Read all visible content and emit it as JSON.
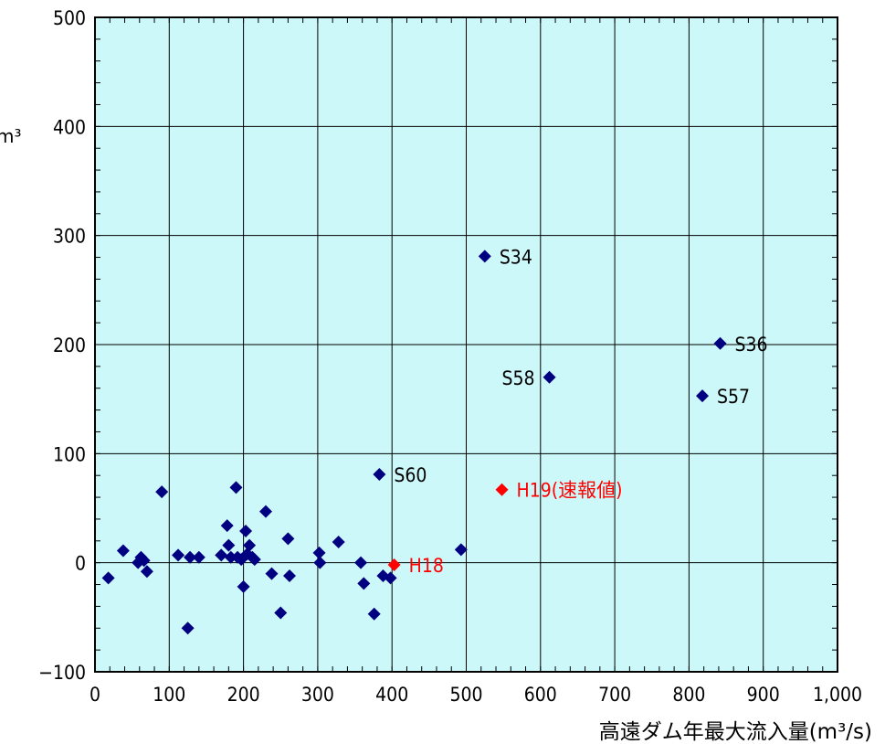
{
  "chart_data": {
    "type": "scatter",
    "xlabel": "高遠ダム年最大流入量(m³/s)",
    "ylabel_fragment": "m³",
    "xlim": [
      0,
      1000
    ],
    "ylim": [
      -100,
      500
    ],
    "x_ticks": [
      "0",
      "100",
      "200",
      "300",
      "400",
      "500",
      "600",
      "700",
      "800",
      "900",
      "1,000"
    ],
    "y_ticks": [
      "−100",
      "0",
      "100",
      "200",
      "300",
      "400",
      "500"
    ],
    "grid": true,
    "background_color": "#ccf8fa",
    "series": [
      {
        "color": "#000080",
        "points": [
          {
            "x": 18,
            "y": -14
          },
          {
            "x": 38,
            "y": 11
          },
          {
            "x": 58,
            "y": 0
          },
          {
            "x": 62,
            "y": 5
          },
          {
            "x": 66,
            "y": 2
          },
          {
            "x": 70,
            "y": -8
          },
          {
            "x": 90,
            "y": 65
          },
          {
            "x": 112,
            "y": 7
          },
          {
            "x": 125,
            "y": -60
          },
          {
            "x": 128,
            "y": 5
          },
          {
            "x": 140,
            "y": 5
          },
          {
            "x": 170,
            "y": 7
          },
          {
            "x": 178,
            "y": 34
          },
          {
            "x": 180,
            "y": 16
          },
          {
            "x": 183,
            "y": 5
          },
          {
            "x": 190,
            "y": 69
          },
          {
            "x": 192,
            "y": 5
          },
          {
            "x": 197,
            "y": 3
          },
          {
            "x": 200,
            "y": -22
          },
          {
            "x": 203,
            "y": 29
          },
          {
            "x": 205,
            "y": 8
          },
          {
            "x": 208,
            "y": 16
          },
          {
            "x": 212,
            "y": 5
          },
          {
            "x": 215,
            "y": 3
          },
          {
            "x": 230,
            "y": 47
          },
          {
            "x": 238,
            "y": -10
          },
          {
            "x": 250,
            "y": -46
          },
          {
            "x": 260,
            "y": 22
          },
          {
            "x": 262,
            "y": -12
          },
          {
            "x": 302,
            "y": 9
          },
          {
            "x": 303,
            "y": 0
          },
          {
            "x": 328,
            "y": 19
          },
          {
            "x": 358,
            "y": 0
          },
          {
            "x": 362,
            "y": -19
          },
          {
            "x": 376,
            "y": -47
          },
          {
            "x": 388,
            "y": -12
          },
          {
            "x": 398,
            "y": -14
          },
          {
            "x": 493,
            "y": 12
          },
          {
            "x": 383,
            "y": 81,
            "label": "S60"
          },
          {
            "x": 525,
            "y": 281,
            "label": "S34"
          },
          {
            "x": 612,
            "y": 170,
            "label": "S58"
          },
          {
            "x": 842,
            "y": 201,
            "label": "S36"
          },
          {
            "x": 818,
            "y": 153,
            "label": "S57"
          }
        ]
      },
      {
        "color": "#ff0000",
        "points": [
          {
            "x": 403,
            "y": -2,
            "label": "H18"
          },
          {
            "x": 548,
            "y": 67,
            "label": "H19(速報値)"
          }
        ]
      }
    ]
  }
}
